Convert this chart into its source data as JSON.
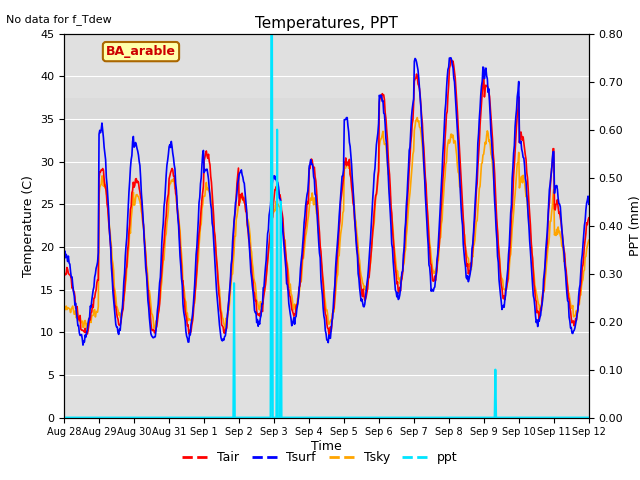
{
  "title": "Temperatures, PPT",
  "subtitle": "No data for f_Tdew",
  "annotation": "BA_arable",
  "xlabel": "Time",
  "ylabel_left": "Temperature (C)",
  "ylabel_right": "PPT (mm)",
  "ylim_left": [
    0,
    45
  ],
  "ylim_right": [
    0,
    0.8
  ],
  "yticks_left": [
    0,
    5,
    10,
    15,
    20,
    25,
    30,
    35,
    40,
    45
  ],
  "yticks_right": [
    0.0,
    0.1,
    0.2,
    0.3,
    0.4,
    0.5,
    0.6,
    0.7,
    0.8
  ],
  "xtick_labels": [
    "Aug 28",
    "Aug 29",
    "Aug 30",
    "Aug 31",
    "Sep 1",
    "Sep 2",
    "Sep 3",
    "Sep 4",
    "Sep 5",
    "Sep 6",
    "Sep 7",
    "Sep 8",
    "Sep 9",
    "Sep 10",
    "Sep 11",
    "Sep 12"
  ],
  "colors": {
    "Tair": "#ff0000",
    "Tsurf": "#0000ff",
    "Tsky": "#ffa500",
    "ppt": "#00e5ff",
    "background": "#e0e0e0",
    "annotation_bg": "#ffffaa",
    "annotation_border": "#aa6600"
  },
  "line_widths": {
    "Tair": 1.2,
    "Tsurf": 1.2,
    "Tsky": 1.2,
    "ppt": 1.5
  },
  "n_points": 720,
  "n_days": 15,
  "gray_band_ylim": [
    5,
    37.5
  ],
  "gray_band2_ylim": [
    37.5,
    45
  ]
}
